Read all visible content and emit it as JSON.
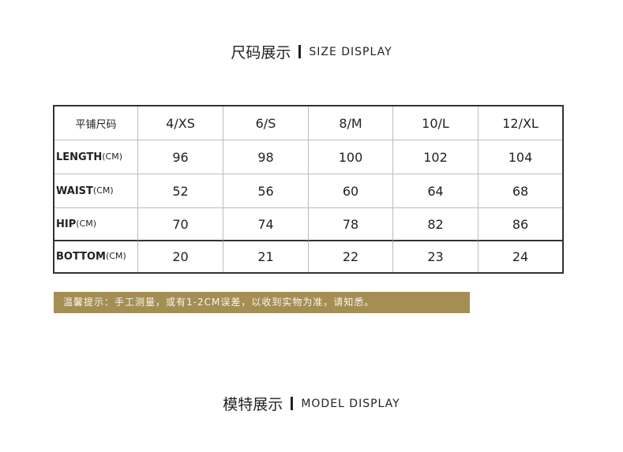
{
  "header": {
    "title_cn": "尺码展示",
    "title_en": "SIZE DISPLAY"
  },
  "table": {
    "corner": "平铺尺码",
    "columns": [
      "4/XS",
      "6/S",
      "8/M",
      "10/L",
      "12/XL"
    ],
    "rows": [
      {
        "label": "LENGTH",
        "unit": "(CM)",
        "values": [
          96,
          98,
          100,
          102,
          104
        ]
      },
      {
        "label": "WAIST",
        "unit": "(CM)",
        "values": [
          52,
          56,
          60,
          64,
          68
        ]
      },
      {
        "label": "HIP",
        "unit": "(CM)",
        "values": [
          70,
          74,
          78,
          82,
          86
        ]
      },
      {
        "label": "BOTTOM",
        "unit": "(CM)",
        "values": [
          20,
          21,
          22,
          23,
          24
        ]
      }
    ]
  },
  "note": "温馨提示：手工测量，或有1-2CM误差，以收到实物为准，请知悉。",
  "footer": {
    "title_cn": "模特展示",
    "title_en": "MODEL DISPLAY"
  }
}
